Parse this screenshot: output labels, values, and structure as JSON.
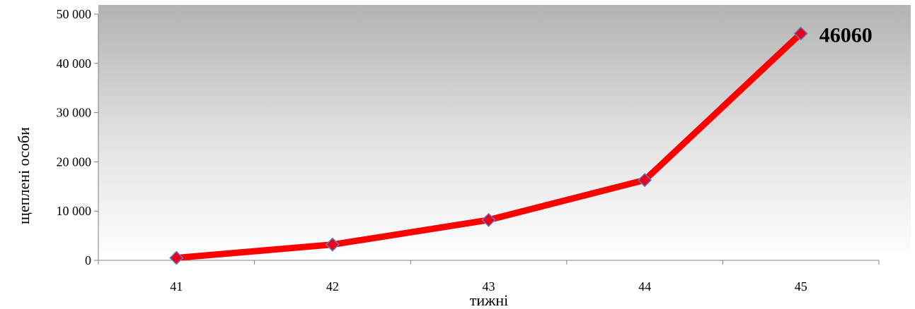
{
  "chart_data": {
    "type": "line",
    "title": "",
    "xlabel": "тижні",
    "ylabel": "щеплені особи",
    "categories": [
      "41",
      "42",
      "43",
      "44",
      "45"
    ],
    "series": [
      {
        "values": [
          500,
          3200,
          8200,
          16300,
          46060
        ],
        "color": "#ff0000",
        "marker_color": "#e8001c",
        "marker_border": "#5b7fc9"
      }
    ],
    "ylim": [
      0,
      50000
    ],
    "yticks": [
      0,
      10000,
      20000,
      30000,
      40000,
      50000
    ],
    "ytick_labels": [
      "0",
      "10 000",
      "20 000",
      "30 000",
      "40 000",
      "50 000"
    ],
    "data_labels": [
      {
        "index": 4,
        "text": "46060"
      }
    ],
    "grid": false,
    "legend": "none",
    "background": "gradient-gray"
  }
}
